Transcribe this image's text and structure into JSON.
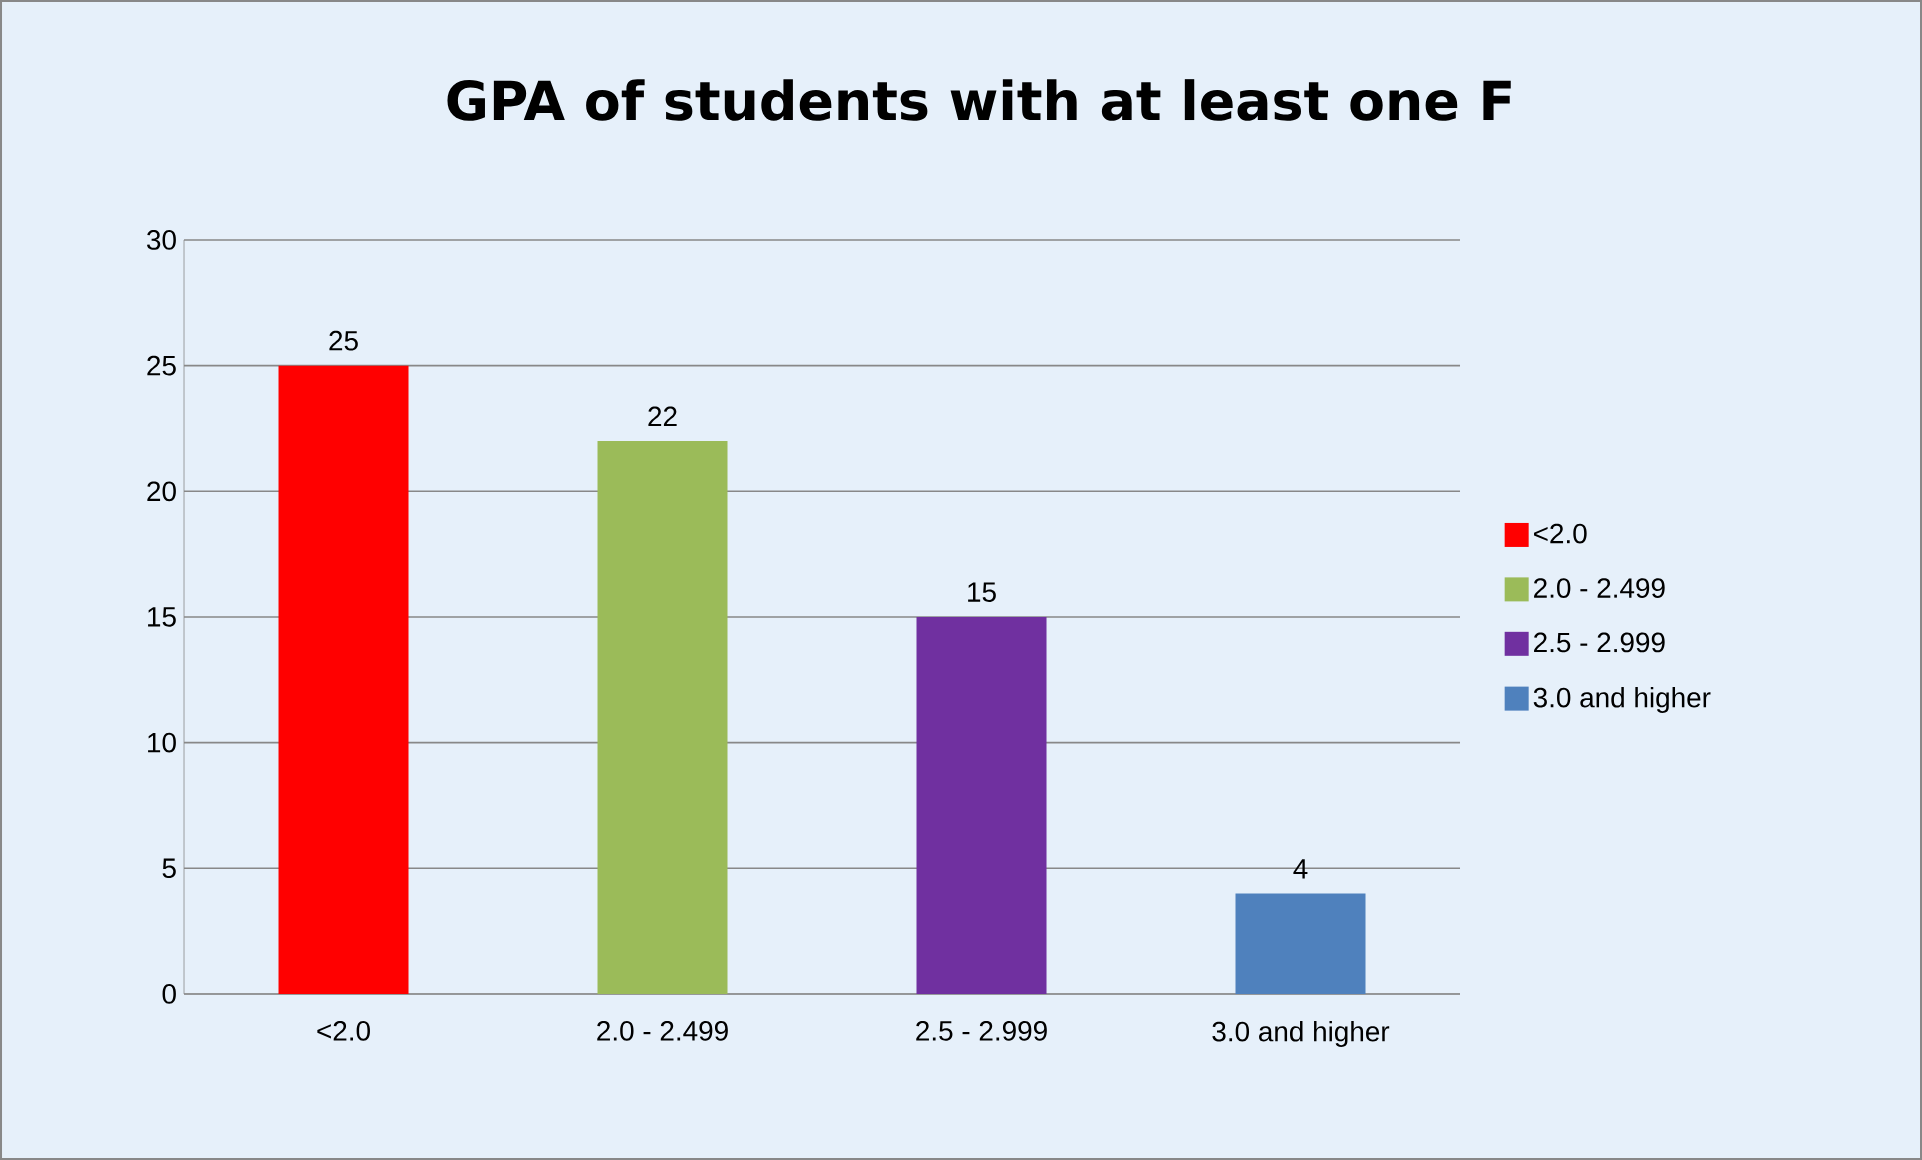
{
  "chart_data": {
    "type": "bar",
    "title": "GPA of students with at least one F",
    "categories": [
      "<2.0",
      "2.0 - 2.499",
      "2.5 - 2.999",
      "3.0 and higher"
    ],
    "series": [
      {
        "name": "<2.0",
        "color": "#ff0000",
        "values": [
          25,
          null,
          null,
          null
        ]
      },
      {
        "name": "2.0 - 2.499",
        "color": "#9bbb59",
        "values": [
          null,
          22,
          null,
          null
        ]
      },
      {
        "name": "2.5 - 2.999",
        "color": "#7030a0",
        "values": [
          null,
          null,
          15,
          null
        ]
      },
      {
        "name": "3.0 and higher",
        "color": "#4f81bd",
        "values": [
          null,
          null,
          null,
          4
        ]
      }
    ],
    "ylim": [
      0,
      30
    ],
    "yticks": [
      0,
      5,
      10,
      15,
      20,
      25,
      30
    ],
    "grid": "y",
    "legend": "right",
    "data_labels": true
  }
}
